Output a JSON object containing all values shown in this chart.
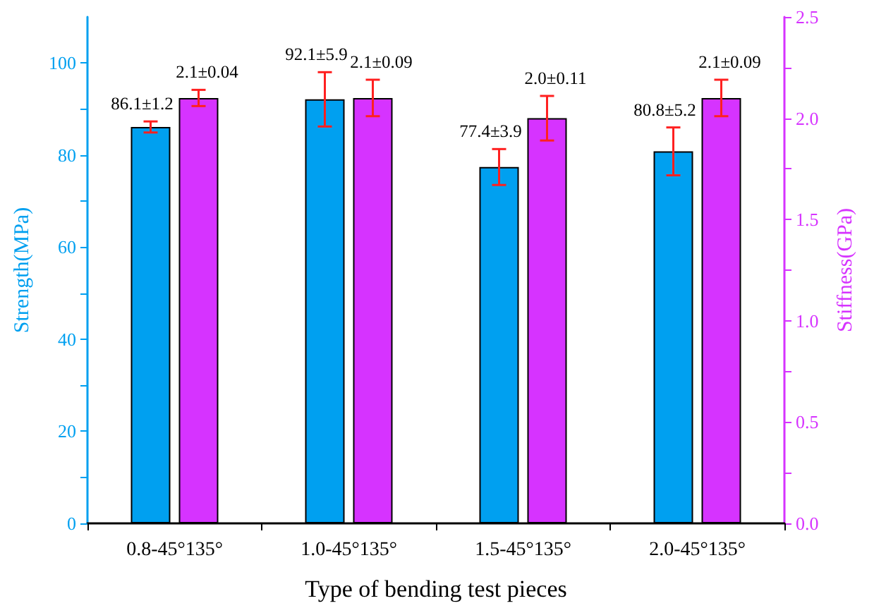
{
  "chart_data": {
    "type": "bar",
    "xlabel": "Type of bending test pieces",
    "ylabel": "Strength(MPa)",
    "y2label": "Stiffness(GPa)",
    "categories": [
      "0.8-45°135°",
      "1.0-45°135°",
      "1.5-45°135°",
      "2.0-45°135°"
    ],
    "series": [
      {
        "color": "#00a0f0",
        "values": [
          86.1,
          92.1,
          77.4,
          80.8
        ],
        "errors": [
          1.2,
          5.9,
          3.9,
          5.2
        ],
        "value_labels": [
          "86.1±1.2",
          "92.1±5.9",
          "77.4±3.9",
          "80.8±5.2"
        ]
      },
      {
        "color": "#d633ff",
        "axis": "y2",
        "values": [
          2.1,
          2.1,
          2.0,
          2.1
        ],
        "errors": [
          0.04,
          0.09,
          0.11,
          0.09
        ],
        "value_labels": [
          "2.1±0.04",
          "2.1±0.09",
          "2.0±0.11",
          "2.1±0.09"
        ]
      }
    ],
    "ylim": [
      0,
      110
    ],
    "yticks": [
      0,
      {
        "value": 10,
        "label": null
      },
      20,
      {
        "value": 30,
        "label": null
      },
      40,
      {
        "value": 50,
        "label": null
      },
      60,
      {
        "value": 70,
        "label": null
      },
      80,
      {
        "value": 90,
        "label": null
      },
      100
    ],
    "y2lim": [
      0,
      2.5
    ],
    "y2ticks": [
      {
        "value": 0,
        "label": "0.0"
      },
      {
        "value": 0.25,
        "label": null
      },
      0.5,
      {
        "value": 0.75,
        "label": null
      },
      {
        "value": 1,
        "label": "1.0"
      },
      {
        "value": 1.25,
        "label": null
      },
      1.5,
      {
        "value": 1.75,
        "label": null
      },
      {
        "value": 2,
        "label": "2.0"
      },
      {
        "value": 2.25,
        "label": null
      },
      2.5
    ],
    "grid": false
  }
}
